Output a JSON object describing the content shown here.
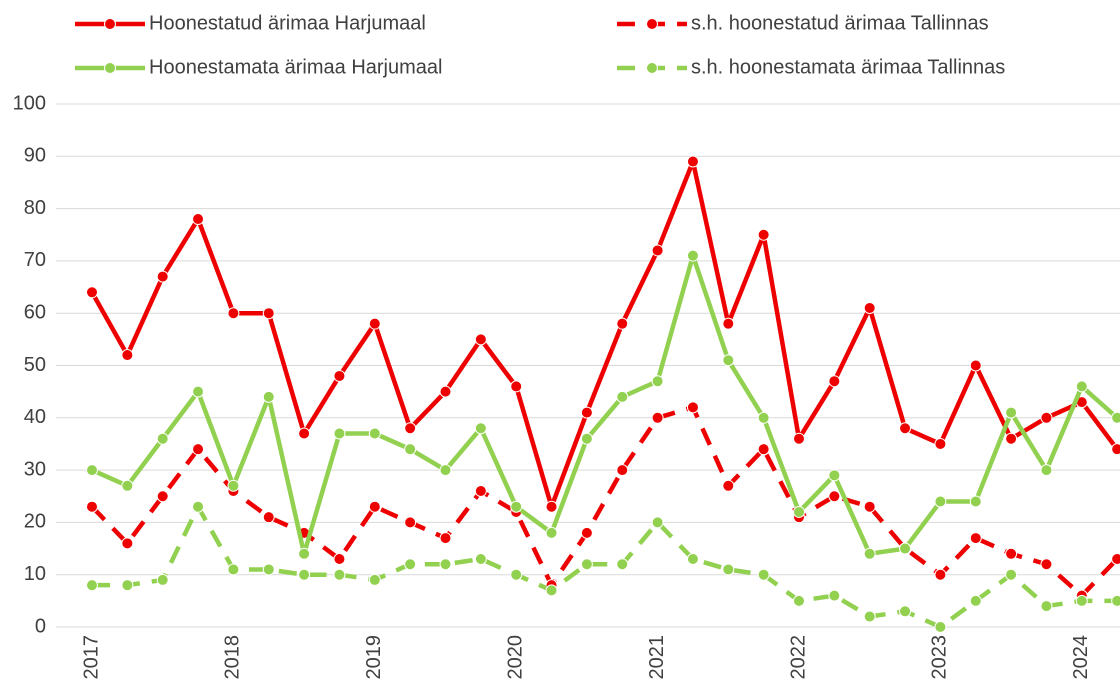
{
  "chart_data": {
    "type": "line",
    "categories": [
      "2017",
      null,
      null,
      null,
      "2018",
      null,
      null,
      null,
      "2019",
      null,
      null,
      null,
      "2020",
      null,
      null,
      null,
      "2021",
      null,
      null,
      null,
      "2022",
      null,
      null,
      null,
      "2023",
      null,
      null,
      null,
      "2024",
      null
    ],
    "series": [
      {
        "name": "Hoonestatud ärimaa Harjumaal",
        "color": "#ee0000",
        "line_style": "solid",
        "values": [
          64,
          52,
          67,
          78,
          60,
          60,
          37,
          48,
          58,
          38,
          45,
          55,
          46,
          23,
          41,
          58,
          72,
          89,
          58,
          75,
          36,
          47,
          61,
          38,
          35,
          50,
          36,
          40,
          43,
          34
        ]
      },
      {
        "name": "s.h. hoonestatud ärimaa Tallinnas",
        "color": "#ee0000",
        "line_style": "dashed",
        "values": [
          23,
          16,
          25,
          34,
          26,
          21,
          18,
          13,
          23,
          20,
          17,
          26,
          22,
          8,
          18,
          30,
          40,
          42,
          27,
          34,
          21,
          25,
          23,
          15,
          10,
          17,
          14,
          12,
          6,
          13
        ]
      },
      {
        "name": "Hoonestamata ärimaa Harjumaal",
        "color": "#92d050",
        "line_style": "solid",
        "values": [
          30,
          27,
          36,
          45,
          27,
          44,
          14,
          37,
          37,
          34,
          30,
          38,
          23,
          18,
          36,
          44,
          47,
          71,
          51,
          40,
          22,
          29,
          14,
          15,
          24,
          24,
          41,
          30,
          46,
          40
        ]
      },
      {
        "name": "s.h. hoonestamata ärimaa Tallinnas",
        "color": "#92d050",
        "line_style": "dashed",
        "values": [
          8,
          8,
          9,
          23,
          11,
          11,
          10,
          10,
          9,
          12,
          12,
          13,
          10,
          7,
          12,
          12,
          20,
          13,
          11,
          10,
          5,
          6,
          2,
          3,
          0,
          5,
          10,
          4,
          5,
          5
        ]
      }
    ],
    "ylim": [
      0,
      100
    ],
    "yticks": [
      0,
      10,
      20,
      30,
      40,
      50,
      60,
      70,
      80,
      90,
      100
    ],
    "grid": true
  }
}
